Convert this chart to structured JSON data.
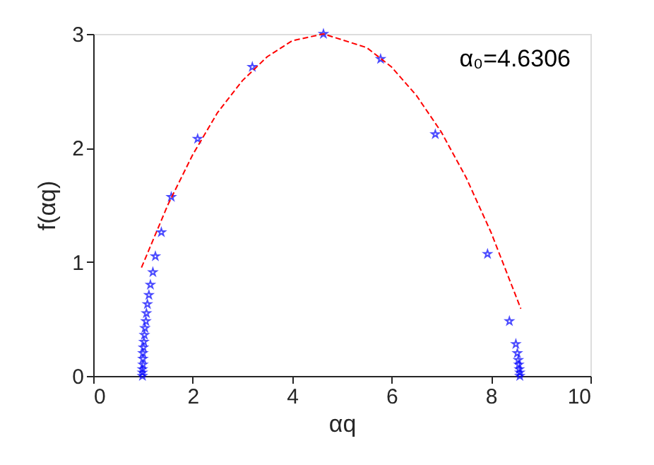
{
  "chart_data": {
    "type": "scatter",
    "xlabel": "αq",
    "ylabel": "f(αq)",
    "xlim": [
      0,
      10
    ],
    "xticks": [
      0,
      2,
      4,
      6,
      8,
      10
    ],
    "ylim": [
      0,
      3
    ],
    "yticks": [
      0,
      1,
      2,
      3
    ],
    "grid": false,
    "annotations": [
      "α₀=4.6306"
    ],
    "series": [
      {
        "color": "#0000ff",
        "marker": "star",
        "x": [
          0.99,
          0.99,
          0.99,
          1.0,
          1.0,
          1.0,
          1.01,
          1.02,
          1.03,
          1.04,
          1.06,
          1.07,
          1.09,
          1.12,
          1.15,
          1.2,
          1.25,
          1.37,
          1.57,
          2.1,
          3.2,
          4.6306,
          5.78,
          6.88,
          7.93,
          8.37,
          8.5,
          8.53,
          8.55,
          8.56,
          8.57,
          8.58,
          8.58
        ],
        "values": [
          0.0,
          0.03,
          0.06,
          0.1,
          0.15,
          0.2,
          0.25,
          0.3,
          0.36,
          0.42,
          0.48,
          0.55,
          0.63,
          0.71,
          0.8,
          0.91,
          1.05,
          1.26,
          1.57,
          2.08,
          2.71,
          3.0,
          2.78,
          2.12,
          1.07,
          0.48,
          0.28,
          0.2,
          0.14,
          0.1,
          0.06,
          0.03,
          0.0
        ]
      },
      {
        "type": "line",
        "color": "#ff0000",
        "line_style": "dashed",
        "marker": "none",
        "x": [
          0.97,
          1.5,
          2,
          2.5,
          3,
          3.5,
          4,
          4.63,
          5.5,
          6,
          6.5,
          7,
          7.5,
          8,
          8.6
        ],
        "values": [
          0.95,
          1.5,
          1.94,
          2.31,
          2.59,
          2.8,
          2.94,
          3.0,
          2.88,
          2.71,
          2.46,
          2.14,
          1.74,
          1.26,
          0.59
        ]
      }
    ]
  }
}
